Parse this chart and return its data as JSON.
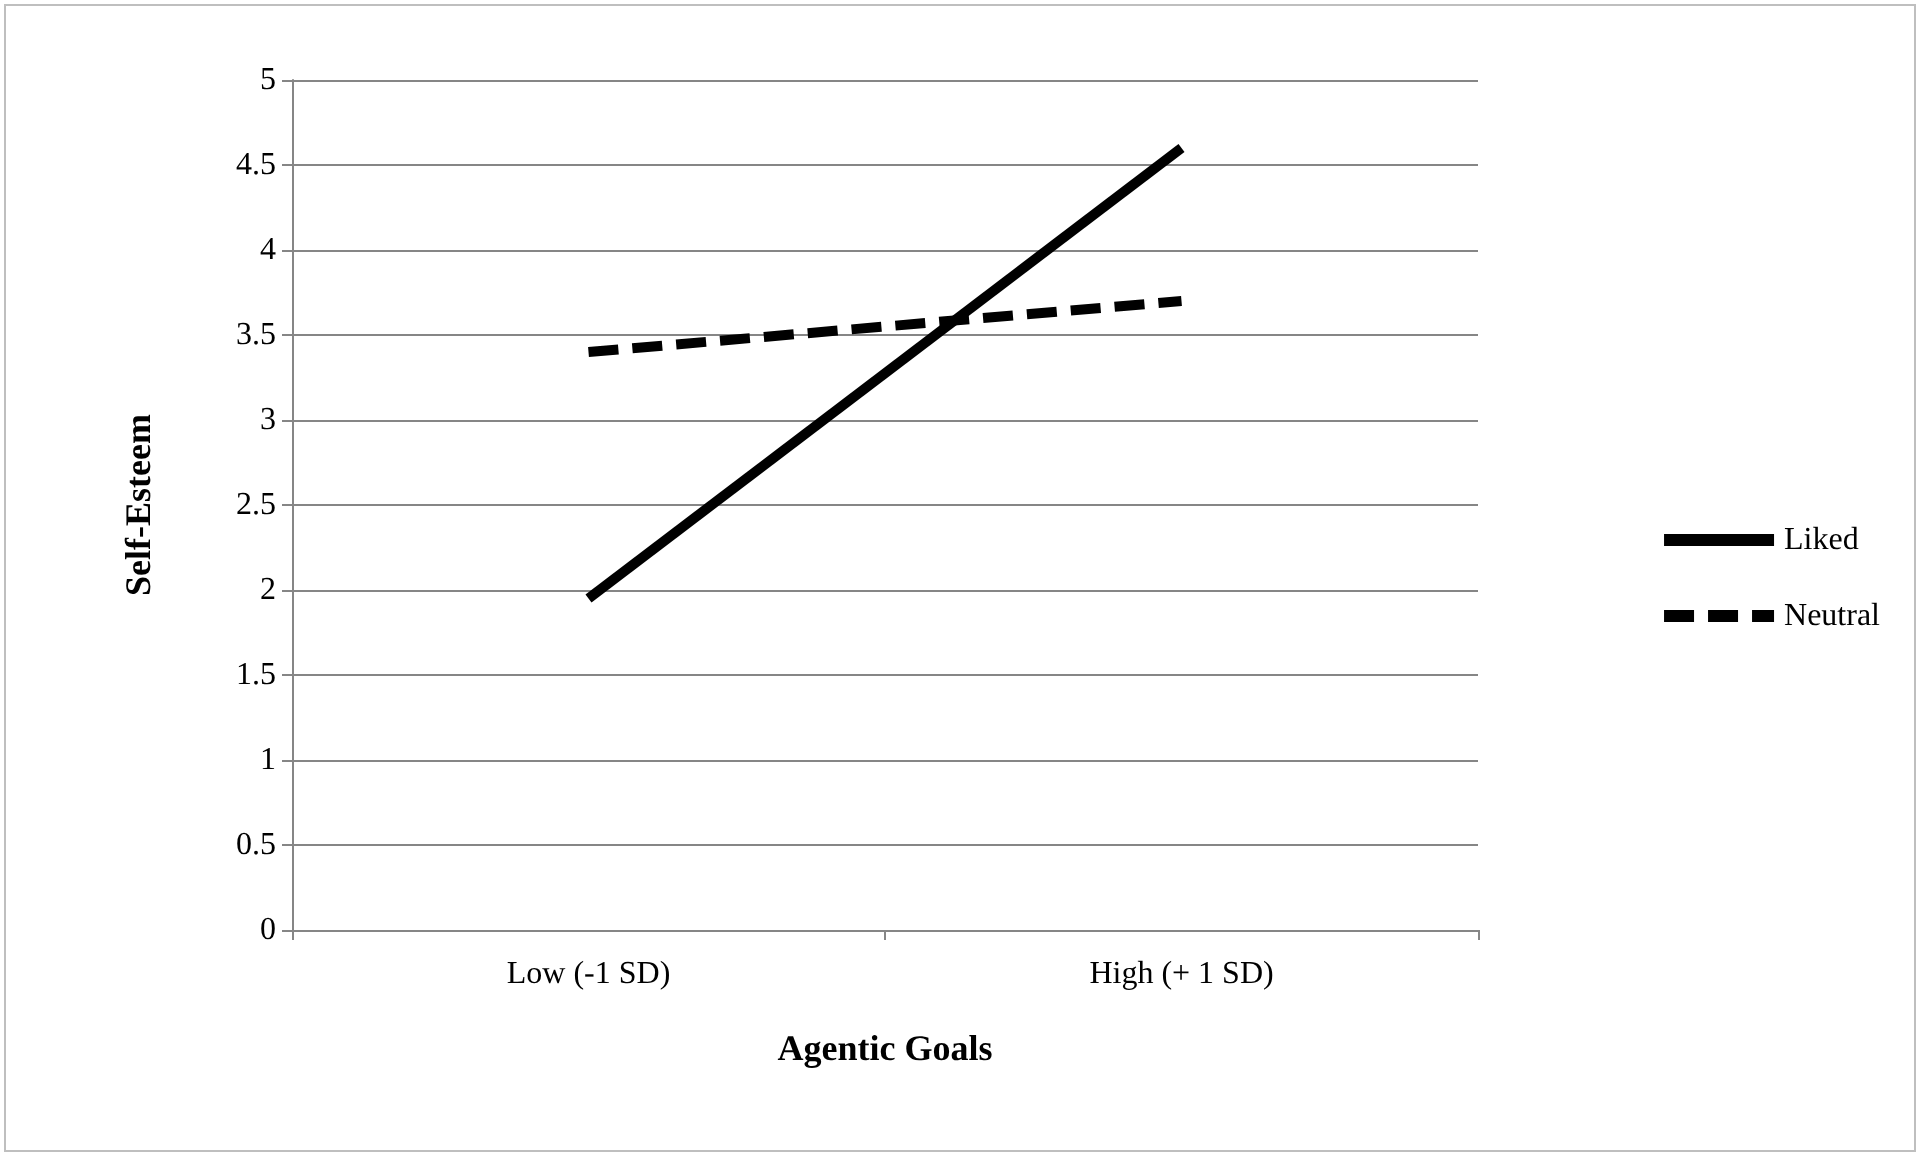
{
  "chart_data": {
    "type": "line",
    "xlabel": "Agentic Goals",
    "ylabel": "Self-Esteem",
    "categories": [
      "Low (-1 SD)",
      "High (+ 1 SD)"
    ],
    "series": [
      {
        "name": "Liked",
        "color": "#000000",
        "values": [
          1.95,
          4.6
        ],
        "line_style": "solid"
      },
      {
        "name": "Neutral",
        "color": "#000000",
        "values": [
          3.4,
          3.7
        ],
        "line_style": "dashed"
      }
    ],
    "ylim": [
      0,
      5
    ],
    "yticks": [
      0,
      0.5,
      1,
      1.5,
      2,
      2.5,
      3,
      3.5,
      4,
      4.5,
      5
    ],
    "grid": "y",
    "legend": "right",
    "marker": "none"
  }
}
